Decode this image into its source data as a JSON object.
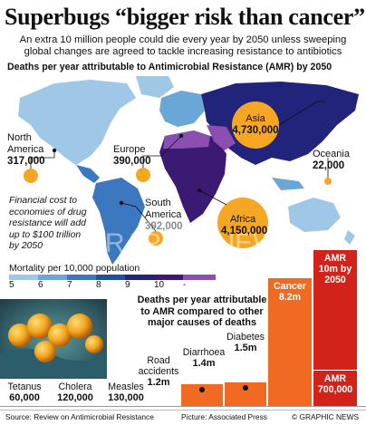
{
  "header": {
    "title": "Superbugs “bigger risk than cancer”",
    "subtitle_line1": "An extra 10 million people could die every year by 2050 unless sweeping",
    "subtitle_line2": "global changes are agreed to tackle increasing resistance to antibiotics"
  },
  "map_section": {
    "title": "Deaths per year attributable to Antimicrobial Resistance (AMR) by 2050",
    "regions": [
      {
        "name": "North America",
        "name_line1": "North",
        "name_line2": "America",
        "value": "317,000"
      },
      {
        "name": "Europe",
        "value": "390,000"
      },
      {
        "name": "Asia",
        "value": "4,730,000"
      },
      {
        "name": "Oceania",
        "value": "22,000"
      },
      {
        "name": "South America",
        "name_line1": "South",
        "name_line2": "America",
        "value": "392,000"
      },
      {
        "name": "Africa",
        "value": "4,150,000"
      }
    ],
    "callout_line1": "Financial cost to",
    "callout_line2": "economies of drug",
    "callout_line3": "resistance will add",
    "callout_line4": "up to $100 trillion",
    "callout_line5": "by 2050",
    "watermark": "GRAPHIC NEWS"
  },
  "legend": {
    "title": "Mortality per 10,000 population",
    "ticks": [
      "5",
      "6",
      "7",
      "8",
      "9",
      "10",
      "-"
    ],
    "colors": [
      "#9fc7e6",
      "#6aa6d6",
      "#3b78c0",
      "#1f4fa0",
      "#22237a",
      "#3a1a73",
      "#8a4fb0"
    ]
  },
  "chart_data": {
    "type": "bar",
    "title_line1": "Deaths per year attributable",
    "title_line2": "to AMR compared to other",
    "title_line3": "major causes of deaths",
    "categories": [
      "Tetanus",
      "Cholera",
      "Measles",
      "Road accidents",
      "Diarrhoea",
      "Diabetes",
      "Cancer",
      "AMR 2050"
    ],
    "category_labels": [
      {
        "line1": "Tetanus",
        "line2": ""
      },
      {
        "line1": "Cholera",
        "line2": ""
      },
      {
        "line1": "Measles",
        "line2": ""
      },
      {
        "line1": "Road",
        "line2": "accidents"
      },
      {
        "line1": "Diarrhoea",
        "line2": ""
      },
      {
        "line1": "Diabetes",
        "line2": ""
      },
      {
        "line1": "Cancer",
        "line2": ""
      },
      {
        "line1": "AMR",
        "line2": "10m by",
        "line3": "2050"
      }
    ],
    "values": [
      0.06,
      0.12,
      0.13,
      1.2,
      1.4,
      1.5,
      8.2,
      10
    ],
    "value_labels": [
      "60,000",
      "120,000",
      "130,000",
      "1.2m",
      "1.4m",
      "1.5m",
      "8.2m",
      ""
    ],
    "amr_now": {
      "line1": "AMR",
      "value": "700,000",
      "value_num": 0.7
    },
    "colors": {
      "bar": "#f06a22",
      "amr": "#d2231a"
    },
    "ylim": [
      0,
      10
    ]
  },
  "footer": {
    "source": "Source: Review on Antimicrobial Resistance",
    "picture": "Picture: Associated Press",
    "credit": "© GRAPHIC NEWS"
  }
}
